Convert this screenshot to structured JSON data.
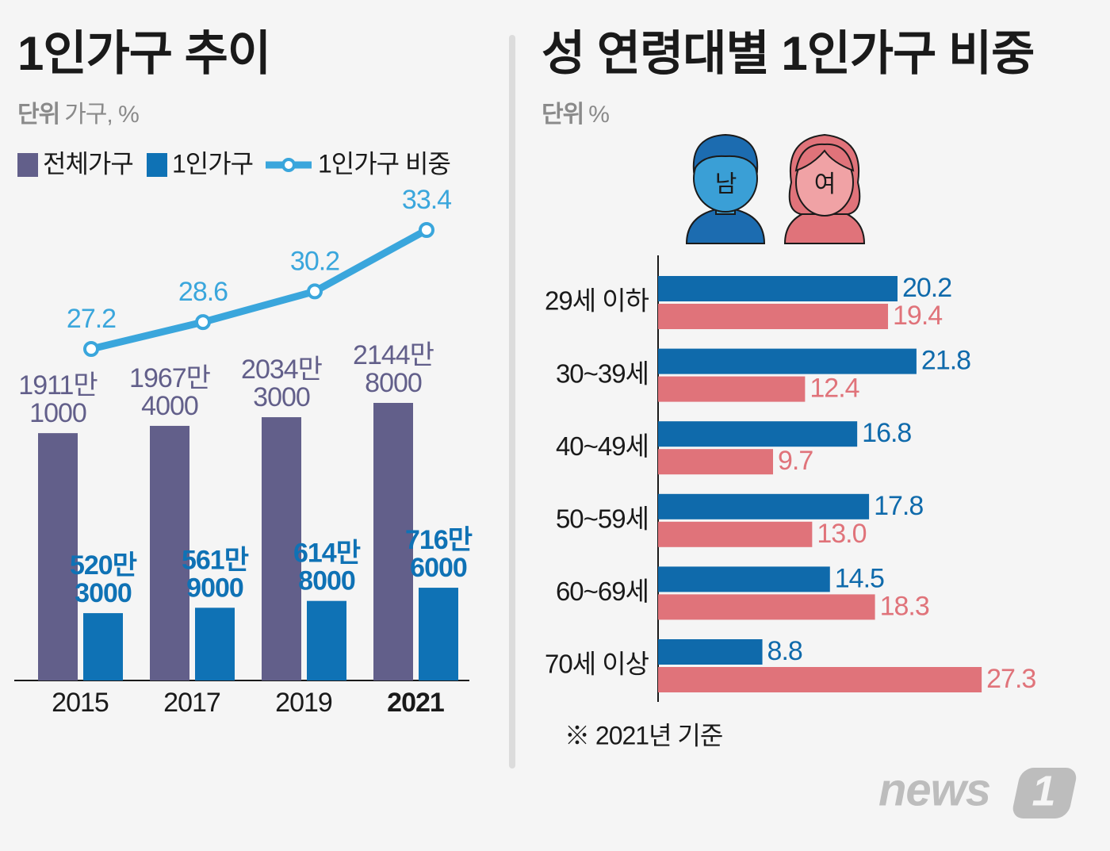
{
  "chart_data": [
    {
      "type": "bar",
      "title": "1인가구 추이",
      "unit_label": "단위",
      "unit": "가구, %",
      "categories": [
        "2015",
        "2017",
        "2019",
        "2021"
      ],
      "series": [
        {
          "name": "전체가구",
          "color": "#625f8a",
          "values": [
            19111000,
            19674000,
            20343000,
            21448000
          ],
          "value_labels": [
            [
              "1911만",
              "1000"
            ],
            [
              "1967만",
              "4000"
            ],
            [
              "2034만",
              "3000"
            ],
            [
              "2144만",
              "8000"
            ]
          ]
        },
        {
          "name": "1인가구",
          "color": "#0f72b5",
          "values": [
            5203000,
            5619000,
            6148000,
            7166000
          ],
          "value_labels": [
            [
              "520만",
              "3000"
            ],
            [
              "561만",
              "9000"
            ],
            [
              "614만",
              "8000"
            ],
            [
              "716만",
              "6000"
            ]
          ]
        },
        {
          "name": "1인가구 비중",
          "color": "#3aa6dc",
          "axis": "y2",
          "values": [
            27.2,
            28.6,
            30.2,
            33.4
          ]
        }
      ]
    },
    {
      "type": "hbar",
      "title": "성 연령대별 1인가구 비중",
      "unit_label": "단위",
      "unit": "%",
      "categories": [
        "29세 이하",
        "30~39세",
        "40~49세",
        "50~59세",
        "60~69세",
        "70세 이상"
      ],
      "series": [
        {
          "name": "남",
          "color": "#0f6aab",
          "values": [
            20.2,
            21.8,
            16.8,
            17.8,
            14.5,
            8.8
          ]
        },
        {
          "name": "여",
          "color": "#e0737a",
          "values": [
            19.4,
            12.4,
            9.7,
            13.0,
            18.3,
            27.3
          ],
          "value_labels": [
            "19.4",
            "12.4",
            "9.7",
            "13.0",
            "18.3",
            "27.3"
          ]
        }
      ],
      "note": "※ 2021년 기준"
    }
  ],
  "logo": {
    "text": "news",
    "mark": "1"
  }
}
